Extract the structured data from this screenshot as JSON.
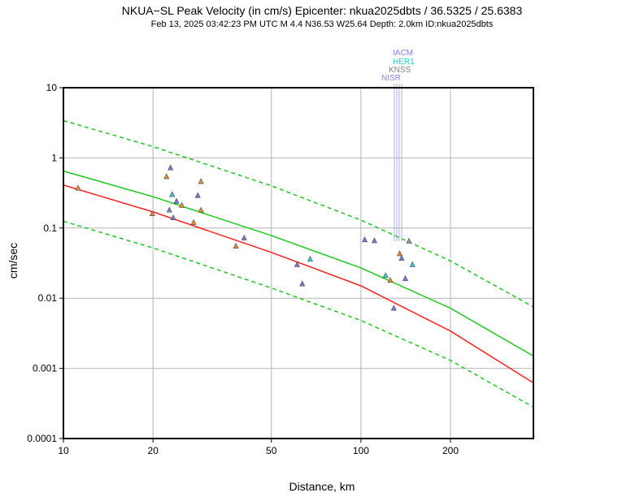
{
  "chart_data": {
    "type": "scatter",
    "title": "NKUA−SL Peak Velocity (in cm/s) Epicenter: nkua2025dbts / 36.5325 / 25.6383",
    "subtitle": "Feb 13, 2025 03:42:23 PM UTC   M 4.4   N36.53 W25.64   Depth: 2.0km   ID:nkua2025dbts",
    "xlabel": "Distance, km",
    "ylabel": "cm/sec",
    "x_scale": "log",
    "y_scale": "log",
    "xlim": [
      10,
      380
    ],
    "ylim": [
      0.0001,
      10
    ],
    "x_ticks": [
      10,
      20,
      50,
      100,
      200
    ],
    "x_tick_labels": [
      "10",
      "20",
      "50",
      "100",
      "200"
    ],
    "y_ticks": [
      0.0001,
      0.001,
      0.01,
      0.1,
      1,
      10
    ],
    "y_tick_labels": [
      "0.0001",
      "0.001",
      "0.01",
      "0.1",
      "1",
      "10"
    ],
    "grid": true,
    "colors": {
      "orange": "#f08a2e",
      "blue": "#7d78dc",
      "cyan": "#40c8e0",
      "green_curve": "#1ec81e",
      "red_curve": "#ff2020",
      "station_line": "#aab0e6",
      "iacm": "#8080ff",
      "her1": "#20d0d0",
      "knss": "#808080",
      "nisr": "#8888dd"
    },
    "curves": [
      {
        "name": "upper bound",
        "style": "dashed",
        "color": "#1ec81e",
        "x": [
          10,
          20,
          50,
          100,
          200,
          380
        ],
        "y": [
          3.4,
          1.45,
          0.4,
          0.13,
          0.034,
          0.0075
        ]
      },
      {
        "name": "median",
        "style": "solid",
        "color": "#1ec81e",
        "x": [
          10,
          20,
          50,
          100,
          200,
          380
        ],
        "y": [
          0.65,
          0.28,
          0.078,
          0.027,
          0.0072,
          0.0015
        ]
      },
      {
        "name": "alt median",
        "style": "solid",
        "color": "#ff2020",
        "x": [
          10,
          20,
          50,
          100,
          200,
          380
        ],
        "y": [
          0.41,
          0.17,
          0.045,
          0.015,
          0.0034,
          0.00062
        ]
      },
      {
        "name": "lower bound",
        "style": "dashed",
        "color": "#1ec81e",
        "x": [
          10,
          20,
          50,
          100,
          200,
          380
        ],
        "y": [
          0.125,
          0.052,
          0.014,
          0.0048,
          0.0013,
          0.00028
        ]
      }
    ],
    "points": [
      {
        "x": 11.2,
        "y": 0.37,
        "c": "orange"
      },
      {
        "x": 19.9,
        "y": 0.16,
        "c": "orange"
      },
      {
        "x": 22.2,
        "y": 0.54,
        "c": "orange"
      },
      {
        "x": 22.9,
        "y": 0.72,
        "c": "blue"
      },
      {
        "x": 23.2,
        "y": 0.3,
        "c": "cyan"
      },
      {
        "x": 22.7,
        "y": 0.18,
        "c": "blue"
      },
      {
        "x": 23.4,
        "y": 0.14,
        "c": "blue"
      },
      {
        "x": 24.0,
        "y": 0.24,
        "c": "blue"
      },
      {
        "x": 25.0,
        "y": 0.21,
        "c": "orange"
      },
      {
        "x": 27.4,
        "y": 0.12,
        "c": "orange"
      },
      {
        "x": 28.3,
        "y": 0.29,
        "c": "blue"
      },
      {
        "x": 29.0,
        "y": 0.46,
        "c": "orange"
      },
      {
        "x": 29.0,
        "y": 0.18,
        "c": "orange"
      },
      {
        "x": 38.0,
        "y": 0.055,
        "c": "orange"
      },
      {
        "x": 40.5,
        "y": 0.072,
        "c": "blue"
      },
      {
        "x": 61.0,
        "y": 0.03,
        "c": "blue"
      },
      {
        "x": 63.5,
        "y": 0.016,
        "c": "blue"
      },
      {
        "x": 67.5,
        "y": 0.036,
        "c": "cyan"
      },
      {
        "x": 103.0,
        "y": 0.068,
        "c": "blue"
      },
      {
        "x": 111.0,
        "y": 0.066,
        "c": "blue"
      },
      {
        "x": 121.0,
        "y": 0.021,
        "c": "cyan"
      },
      {
        "x": 125.5,
        "y": 0.018,
        "c": "orange"
      },
      {
        "x": 129.0,
        "y": 0.0072,
        "c": "blue"
      },
      {
        "x": 135.0,
        "y": 0.043,
        "c": "orange"
      },
      {
        "x": 137.0,
        "y": 0.037,
        "c": "blue"
      },
      {
        "x": 141.0,
        "y": 0.019,
        "c": "blue"
      },
      {
        "x": 149.0,
        "y": 0.03,
        "c": "cyan"
      },
      {
        "x": 145.0,
        "y": 0.065,
        "c": "grey"
      }
    ],
    "stations": [
      {
        "label": "IACM",
        "x": 139,
        "color": "#8080ff"
      },
      {
        "label": "HER1",
        "x": 141,
        "color": "#20d0d0"
      },
      {
        "label": "KNSS",
        "x": 143,
        "color": "#808080"
      },
      {
        "label": "NISR",
        "x": 145,
        "color": "#8888dd"
      }
    ]
  }
}
